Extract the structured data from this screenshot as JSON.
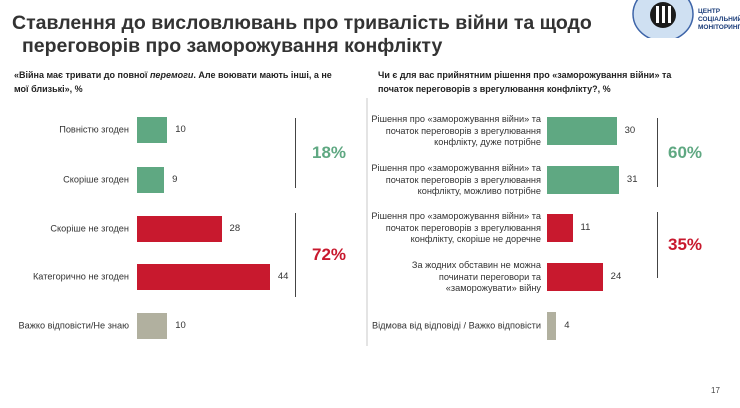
{
  "title": [
    "Ставлення до висловлювань про тривалість війни та щодо",
    "переговорів про заморожування конфлікту"
  ],
  "logo": {
    "lines": [
      "ЦЕНТР",
      "СОЦІАЛЬНИЙ",
      "МОНІТОРИНГ"
    ]
  },
  "page_number": "17",
  "colors": {
    "agree": "#5fa882",
    "disagree": "#c8192e",
    "neutral": "#b1b09f"
  },
  "chart_data": [
    {
      "type": "bar",
      "orientation": "horizontal",
      "title_parts": [
        "«Війна має тривати до повної ",
        "перемоги",
        ". Але воювати мають інші, а не мої близькі», %"
      ],
      "categories": [
        "Повністю згоден",
        "Скоріше згоден",
        "Скоріше не згоден",
        "Категорично не згоден",
        "Важко відповісти/Не знаю"
      ],
      "values": [
        10,
        9,
        28,
        44,
        10
      ],
      "groups": [
        "agree",
        "agree",
        "disagree",
        "disagree",
        "neutral"
      ],
      "summaries": [
        {
          "label": "18%",
          "group": "agree"
        },
        {
          "label": "72%",
          "group": "disagree"
        }
      ]
    },
    {
      "type": "bar",
      "orientation": "horizontal",
      "title": "Чи є для вас прийнятним  рішення про «заморожування війни» та початок переговорів з врегулювання конфлікту?, %",
      "categories": [
        "Рішення про «заморожування війни» та початок переговорів з врегулювання конфлікту, дуже потрібне",
        "Рішення про «заморожування війни» та початок переговорів з врегулювання конфлікту, можливо потрібне",
        "Рішення про «заморожування війни» та початок переговорів з врегулювання конфлікту, скоріше не доречне",
        "За жодних обставин не можна починати переговори та «заморожувати» війну",
        "Відмова від відповіді / Важко відповісти"
      ],
      "values": [
        30,
        31,
        11,
        24,
        4
      ],
      "groups": [
        "agree",
        "agree",
        "disagree",
        "disagree",
        "neutral"
      ],
      "summaries": [
        {
          "label": "60%",
          "group": "agree"
        },
        {
          "label": "35%",
          "group": "disagree"
        }
      ]
    }
  ]
}
